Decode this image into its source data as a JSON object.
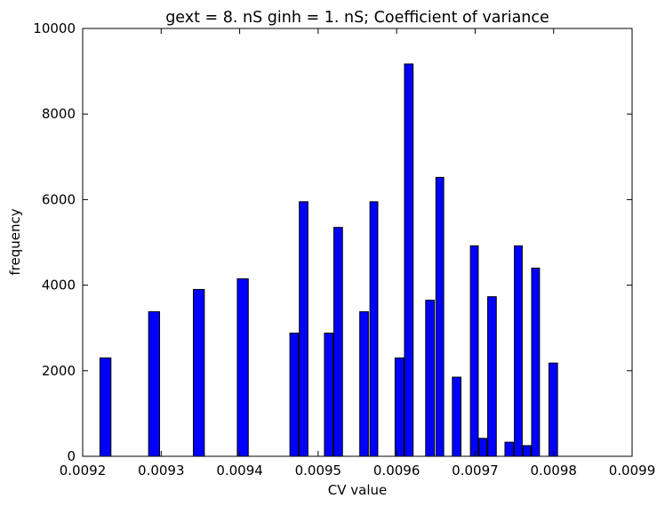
{
  "chart_data": {
    "type": "bar",
    "title": "gext = 8. nS ginh = 1. nS; Coefficient of variance",
    "xlabel": "CV value",
    "ylabel": "frequency",
    "xlim": [
      0.0092,
      0.0099
    ],
    "ylim": [
      0,
      10000
    ],
    "xticks": [
      {
        "value": 0.0092,
        "label": "0.0092"
      },
      {
        "value": 0.0093,
        "label": "0.0093"
      },
      {
        "value": 0.0094,
        "label": "0.0094"
      },
      {
        "value": 0.0095,
        "label": "0.0095"
      },
      {
        "value": 0.0096,
        "label": "0.0096"
      },
      {
        "value": 0.0097,
        "label": "0.0097"
      },
      {
        "value": 0.0098,
        "label": "0.0098"
      },
      {
        "value": 0.0099,
        "label": "0.0099"
      }
    ],
    "yticks": [
      {
        "value": 0,
        "label": "0"
      },
      {
        "value": 2000,
        "label": "2000"
      },
      {
        "value": 4000,
        "label": "4000"
      },
      {
        "value": 6000,
        "label": "6000"
      },
      {
        "value": 8000,
        "label": "8000"
      },
      {
        "value": 10000,
        "label": "10000"
      }
    ],
    "grid": false,
    "bar_color": "#0000ff",
    "edge_color": "#000000",
    "bars": [
      {
        "x0": 0.009222,
        "x1": 0.009236,
        "value": 2300
      },
      {
        "x0": 0.009284,
        "x1": 0.009298,
        "value": 3380
      },
      {
        "x0": 0.009341,
        "x1": 0.009355,
        "value": 3900
      },
      {
        "x0": 0.009397,
        "x1": 0.009411,
        "value": 4150
      },
      {
        "x0": 0.009464,
        "x1": 0.009475,
        "value": 2880
      },
      {
        "x0": 0.009476,
        "x1": 0.009487,
        "value": 5950
      },
      {
        "x0": 0.009508,
        "x1": 0.009519,
        "value": 2880
      },
      {
        "x0": 0.00952,
        "x1": 0.009531,
        "value": 5350
      },
      {
        "x0": 0.009553,
        "x1": 0.009564,
        "value": 3380
      },
      {
        "x0": 0.009566,
        "x1": 0.009576,
        "value": 5950
      },
      {
        "x0": 0.009598,
        "x1": 0.009609,
        "value": 2300
      },
      {
        "x0": 0.00961,
        "x1": 0.009621,
        "value": 9170
      },
      {
        "x0": 0.009637,
        "x1": 0.009648,
        "value": 3650
      },
      {
        "x0": 0.00965,
        "x1": 0.00966,
        "value": 6520
      },
      {
        "x0": 0.009671,
        "x1": 0.009682,
        "value": 1850
      },
      {
        "x0": 0.009694,
        "x1": 0.009704,
        "value": 4920
      },
      {
        "x0": 0.009705,
        "x1": 0.009715,
        "value": 420
      },
      {
        "x0": 0.009716,
        "x1": 0.009727,
        "value": 3730
      },
      {
        "x0": 0.009738,
        "x1": 0.009749,
        "value": 330
      },
      {
        "x0": 0.00975,
        "x1": 0.00976,
        "value": 4920
      },
      {
        "x0": 0.009761,
        "x1": 0.009771,
        "value": 250
      },
      {
        "x0": 0.009772,
        "x1": 0.009782,
        "value": 4400
      },
      {
        "x0": 0.009794,
        "x1": 0.009805,
        "value": 2180
      }
    ]
  }
}
